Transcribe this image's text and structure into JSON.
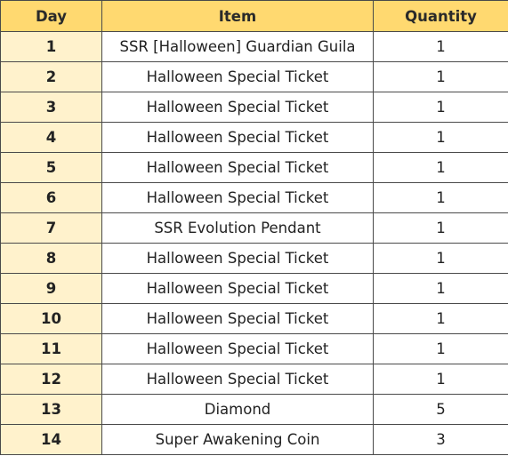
{
  "headers": {
    "day": "Day",
    "item": "Item",
    "quantity": "Quantity"
  },
  "rows": [
    {
      "day": "1",
      "item": "SSR [Halloween] Guardian Guila",
      "quantity": "1"
    },
    {
      "day": "2",
      "item": "Halloween Special Ticket",
      "quantity": "1"
    },
    {
      "day": "3",
      "item": "Halloween Special Ticket",
      "quantity": "1"
    },
    {
      "day": "4",
      "item": "Halloween Special Ticket",
      "quantity": "1"
    },
    {
      "day": "5",
      "item": "Halloween Special Ticket",
      "quantity": "1"
    },
    {
      "day": "6",
      "item": "Halloween Special Ticket",
      "quantity": "1"
    },
    {
      "day": "7",
      "item": "SSR Evolution Pendant",
      "quantity": "1"
    },
    {
      "day": "8",
      "item": "Halloween Special Ticket",
      "quantity": "1"
    },
    {
      "day": "9",
      "item": "Halloween Special Ticket",
      "quantity": "1"
    },
    {
      "day": "10",
      "item": "Halloween Special Ticket",
      "quantity": "1"
    },
    {
      "day": "11",
      "item": "Halloween Special Ticket",
      "quantity": "1"
    },
    {
      "day": "12",
      "item": "Halloween Special Ticket",
      "quantity": "1"
    },
    {
      "day": "13",
      "item": "Diamond",
      "quantity": "5"
    },
    {
      "day": "14",
      "item": "Super Awakening Coin",
      "quantity": "3"
    }
  ],
  "colors": {
    "header_background": "#ffd970",
    "day_column_background": "#fff2cc",
    "border": "#4a4a4a"
  }
}
